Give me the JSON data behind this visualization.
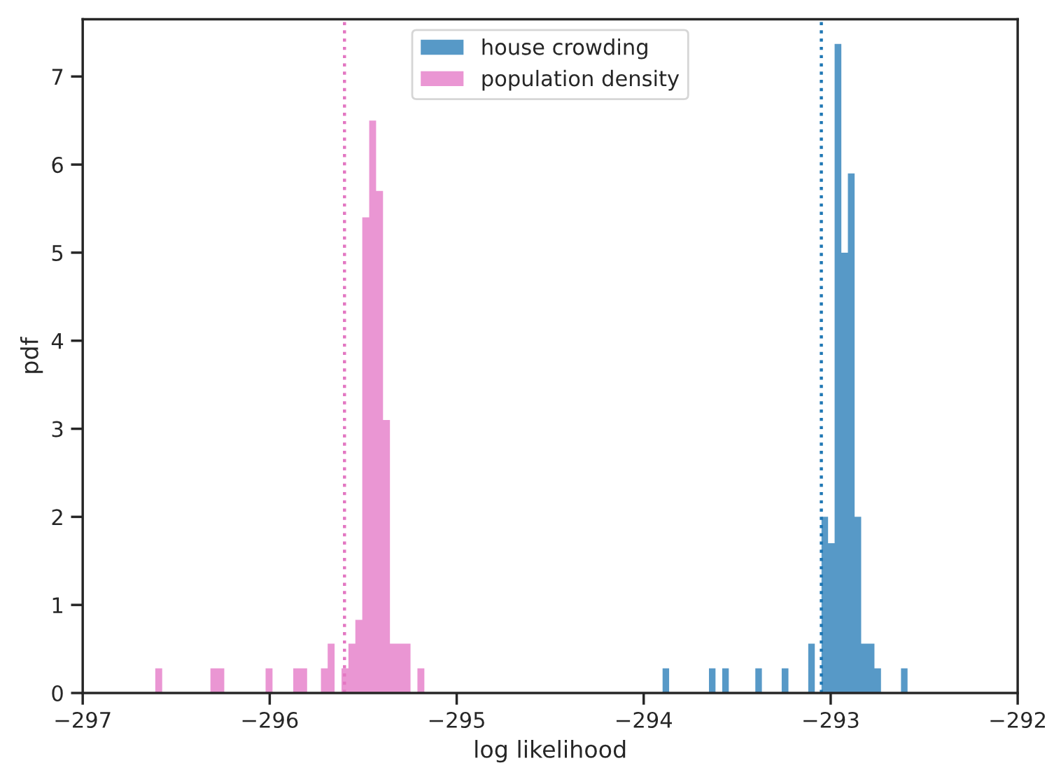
{
  "chart_data": {
    "type": "histogram",
    "xlabel": "log likelihood",
    "ylabel": "pdf",
    "bins": [
      -296.612,
      -296.575,
      -296.538,
      -296.501,
      -296.464,
      -296.428,
      -296.391,
      -296.354,
      -296.317,
      -296.28,
      -296.243,
      -296.206,
      -296.169,
      -296.132,
      -296.095,
      -296.059,
      -296.022,
      -295.985,
      -295.948,
      -295.911,
      -295.874,
      -295.837,
      -295.8,
      -295.763,
      -295.726,
      -295.69,
      -295.653,
      -295.616,
      -295.579,
      -295.542,
      -295.505,
      -295.468,
      -295.431,
      -295.394,
      -295.357,
      -295.321,
      -295.284,
      -295.247,
      -295.21,
      -295.173,
      -293.899,
      -293.864,
      -293.828,
      -293.793,
      -293.757,
      -293.722,
      -293.687,
      -293.651,
      -293.616,
      -293.58,
      -293.545,
      -293.51,
      -293.474,
      -293.439,
      -293.403,
      -293.368,
      -293.333,
      -293.297,
      -293.262,
      -293.226,
      -293.191,
      -293.156,
      -293.12,
      -293.085,
      -293.049,
      -293.014,
      -292.979,
      -292.943,
      -292.908,
      -292.872,
      -292.837,
      -292.802,
      -292.766,
      -292.731,
      -292.695,
      -292.66,
      -292.624,
      -292.589
    ],
    "series": [
      {
        "name": "house crowding",
        "color": "#5799c7",
        "values": [
          0,
          0,
          0,
          0,
          0,
          0,
          0,
          0,
          0,
          0,
          0,
          0,
          0,
          0,
          0,
          0,
          0,
          0,
          0,
          0,
          0,
          0,
          0,
          0,
          0,
          0,
          0,
          0,
          0,
          0,
          0,
          0,
          0,
          0,
          0,
          0,
          0,
          0,
          0,
          0,
          0.28,
          0,
          0,
          0,
          0,
          0,
          0,
          0.28,
          0,
          0.28,
          0,
          0,
          0,
          0,
          0.28,
          0,
          0,
          0,
          0.28,
          0,
          0,
          0,
          0.56,
          0,
          2.0,
          1.7,
          7.37,
          5.0,
          5.9,
          2.0,
          0.56,
          0.56,
          0.28,
          0,
          0,
          0,
          0.28
        ]
      },
      {
        "name": "population density",
        "color": "#ea96d3",
        "values": [
          0.28,
          0,
          0,
          0,
          0,
          0,
          0,
          0,
          0.28,
          0.28,
          0,
          0,
          0,
          0,
          0,
          0,
          0.28,
          0,
          0,
          0,
          0.28,
          0.28,
          0,
          0,
          0.28,
          0.56,
          0,
          0.28,
          0.56,
          0.83,
          5.4,
          6.5,
          5.7,
          3.1,
          0.56,
          0.56,
          0.56,
          0,
          0.28,
          0,
          0,
          0,
          0,
          0,
          0,
          0,
          0,
          0,
          0,
          0,
          0,
          0,
          0,
          0,
          0,
          0,
          0,
          0,
          0,
          0,
          0,
          0,
          0,
          0,
          0,
          0,
          0,
          0,
          0,
          0,
          0,
          0,
          0,
          0,
          0,
          0,
          0
        ]
      }
    ],
    "ref_lines": [
      {
        "axis": "x",
        "value": -293.05,
        "color": "#1f77b4",
        "line_style": "dotted"
      },
      {
        "axis": "x",
        "value": -295.6,
        "color": "#e377c2",
        "line_style": "dotted"
      }
    ],
    "xlim": [
      -297,
      -292
    ],
    "xticks": [
      {
        "value": -297,
        "label": "−297"
      },
      {
        "value": -296,
        "label": "−296"
      },
      {
        "value": -295,
        "label": "−295"
      },
      {
        "value": -294,
        "label": "−294"
      },
      {
        "value": -293,
        "label": "−293"
      },
      {
        "value": -292,
        "label": "−292"
      }
    ],
    "ylim": [
      0,
      7.65
    ],
    "yticks": [
      0,
      1,
      2,
      3,
      4,
      5,
      6,
      7
    ],
    "legend": "top",
    "grid": false
  }
}
